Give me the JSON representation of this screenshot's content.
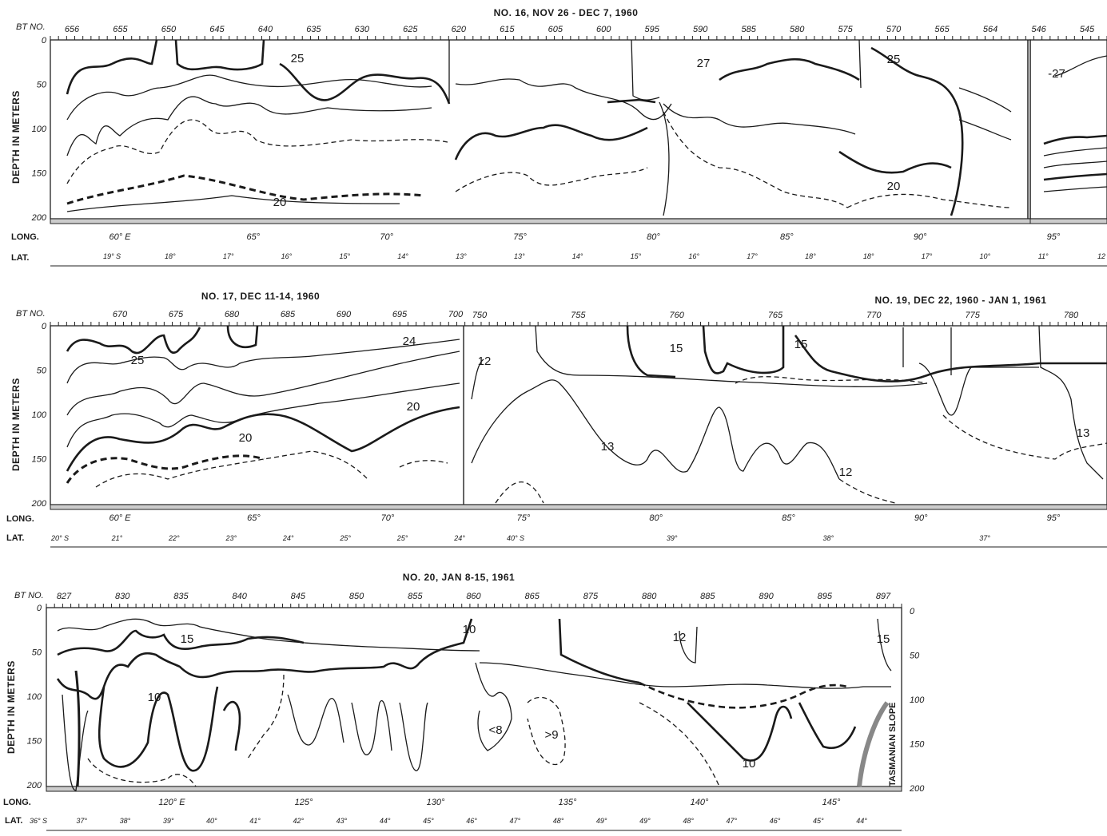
{
  "figure": "bathythermograph temperature sections",
  "chart_data": [
    {
      "type": "line",
      "title": "NO. 16, NOV 26 - DEC 7, 1960",
      "ylabel": "DEPTH IN METERS",
      "yticks": [
        "0",
        "50",
        "100",
        "150",
        "200"
      ],
      "bt_label": "BT NO.",
      "bt_ticks": [
        "656",
        "655",
        "650",
        "645",
        "640",
        "635",
        "630",
        "625",
        "620",
        "615",
        "605",
        "600",
        "595",
        "590",
        "585",
        "580",
        "575",
        "570",
        "565",
        "564",
        "546",
        "545"
      ],
      "long_label": "LONG.",
      "long_ticks": [
        "60° E",
        "65°",
        "70°",
        "75°",
        "80°",
        "85°",
        "90°",
        "95°"
      ],
      "lat_label": "LAT.",
      "lat_ticks": [
        "19° S",
        "18°",
        "17°",
        "16°",
        "15°",
        "14°",
        "13°",
        "13°",
        "14°",
        "15°",
        "16°",
        "17°",
        "18°",
        "18°",
        "17°",
        "10°",
        "11°",
        "12"
      ],
      "isotherm_labels": [
        "25",
        "27",
        "25",
        "20",
        "20",
        "-27"
      ]
    },
    {
      "type": "line",
      "title": "NO. 17, DEC 11-14, 1960",
      "ylabel": "DEPTH IN METERS",
      "yticks": [
        "0",
        "50",
        "100",
        "150",
        "200"
      ],
      "bt_label": "BT NO.",
      "bt_ticks": [
        "670",
        "675",
        "680",
        "685",
        "690",
        "695",
        "700"
      ],
      "long_label": "LONG.",
      "long_ticks": [
        "60° E",
        "65°",
        "70°"
      ],
      "lat_label": "LAT.",
      "lat_ticks": [
        "20° S",
        "21°",
        "22°",
        "23°",
        "24°",
        "25°",
        "25°",
        "24°"
      ],
      "isotherm_labels": [
        "25",
        "24",
        "20",
        "20"
      ]
    },
    {
      "type": "line",
      "title": "NO. 19, DEC 22, 1960 - JAN 1, 1961",
      "bt_ticks": [
        "750",
        "755",
        "760",
        "765",
        "770",
        "775",
        "780"
      ],
      "long_ticks": [
        "75°",
        "80°",
        "85°",
        "90°",
        "95°"
      ],
      "lat_ticks": [
        "40° S",
        "39°",
        "38°",
        "37°"
      ],
      "isotherm_labels": [
        "12",
        "15",
        "15",
        "13",
        "12",
        "13"
      ]
    },
    {
      "type": "line",
      "title": "NO. 20, JAN 8-15, 1961",
      "ylabel": "DEPTH IN METERS",
      "yticks": [
        "0",
        "50",
        "100",
        "150",
        "200"
      ],
      "bt_label": "BT NO.",
      "bt_ticks": [
        "827",
        "830",
        "835",
        "840",
        "845",
        "850",
        "855",
        "860",
        "865",
        "875",
        "880",
        "885",
        "890",
        "895",
        "897"
      ],
      "long_label": "LONG.",
      "long_ticks": [
        "120° E",
        "125°",
        "130°",
        "135°",
        "140°",
        "145°"
      ],
      "lat_label": "LAT.",
      "lat_ticks": [
        "36° S",
        "37°",
        "38°",
        "39°",
        "40°",
        "41°",
        "42°",
        "43°",
        "44°",
        "45°",
        "46°",
        "47°",
        "48°",
        "49°",
        "49°",
        "48°",
        "47°",
        "46°",
        "45°",
        "44°"
      ],
      "isotherm_labels": [
        "15",
        "10",
        "10",
        "<8",
        ">9",
        "12",
        "15",
        "10"
      ],
      "side_label": "TASMANIAN SLOPE"
    }
  ]
}
